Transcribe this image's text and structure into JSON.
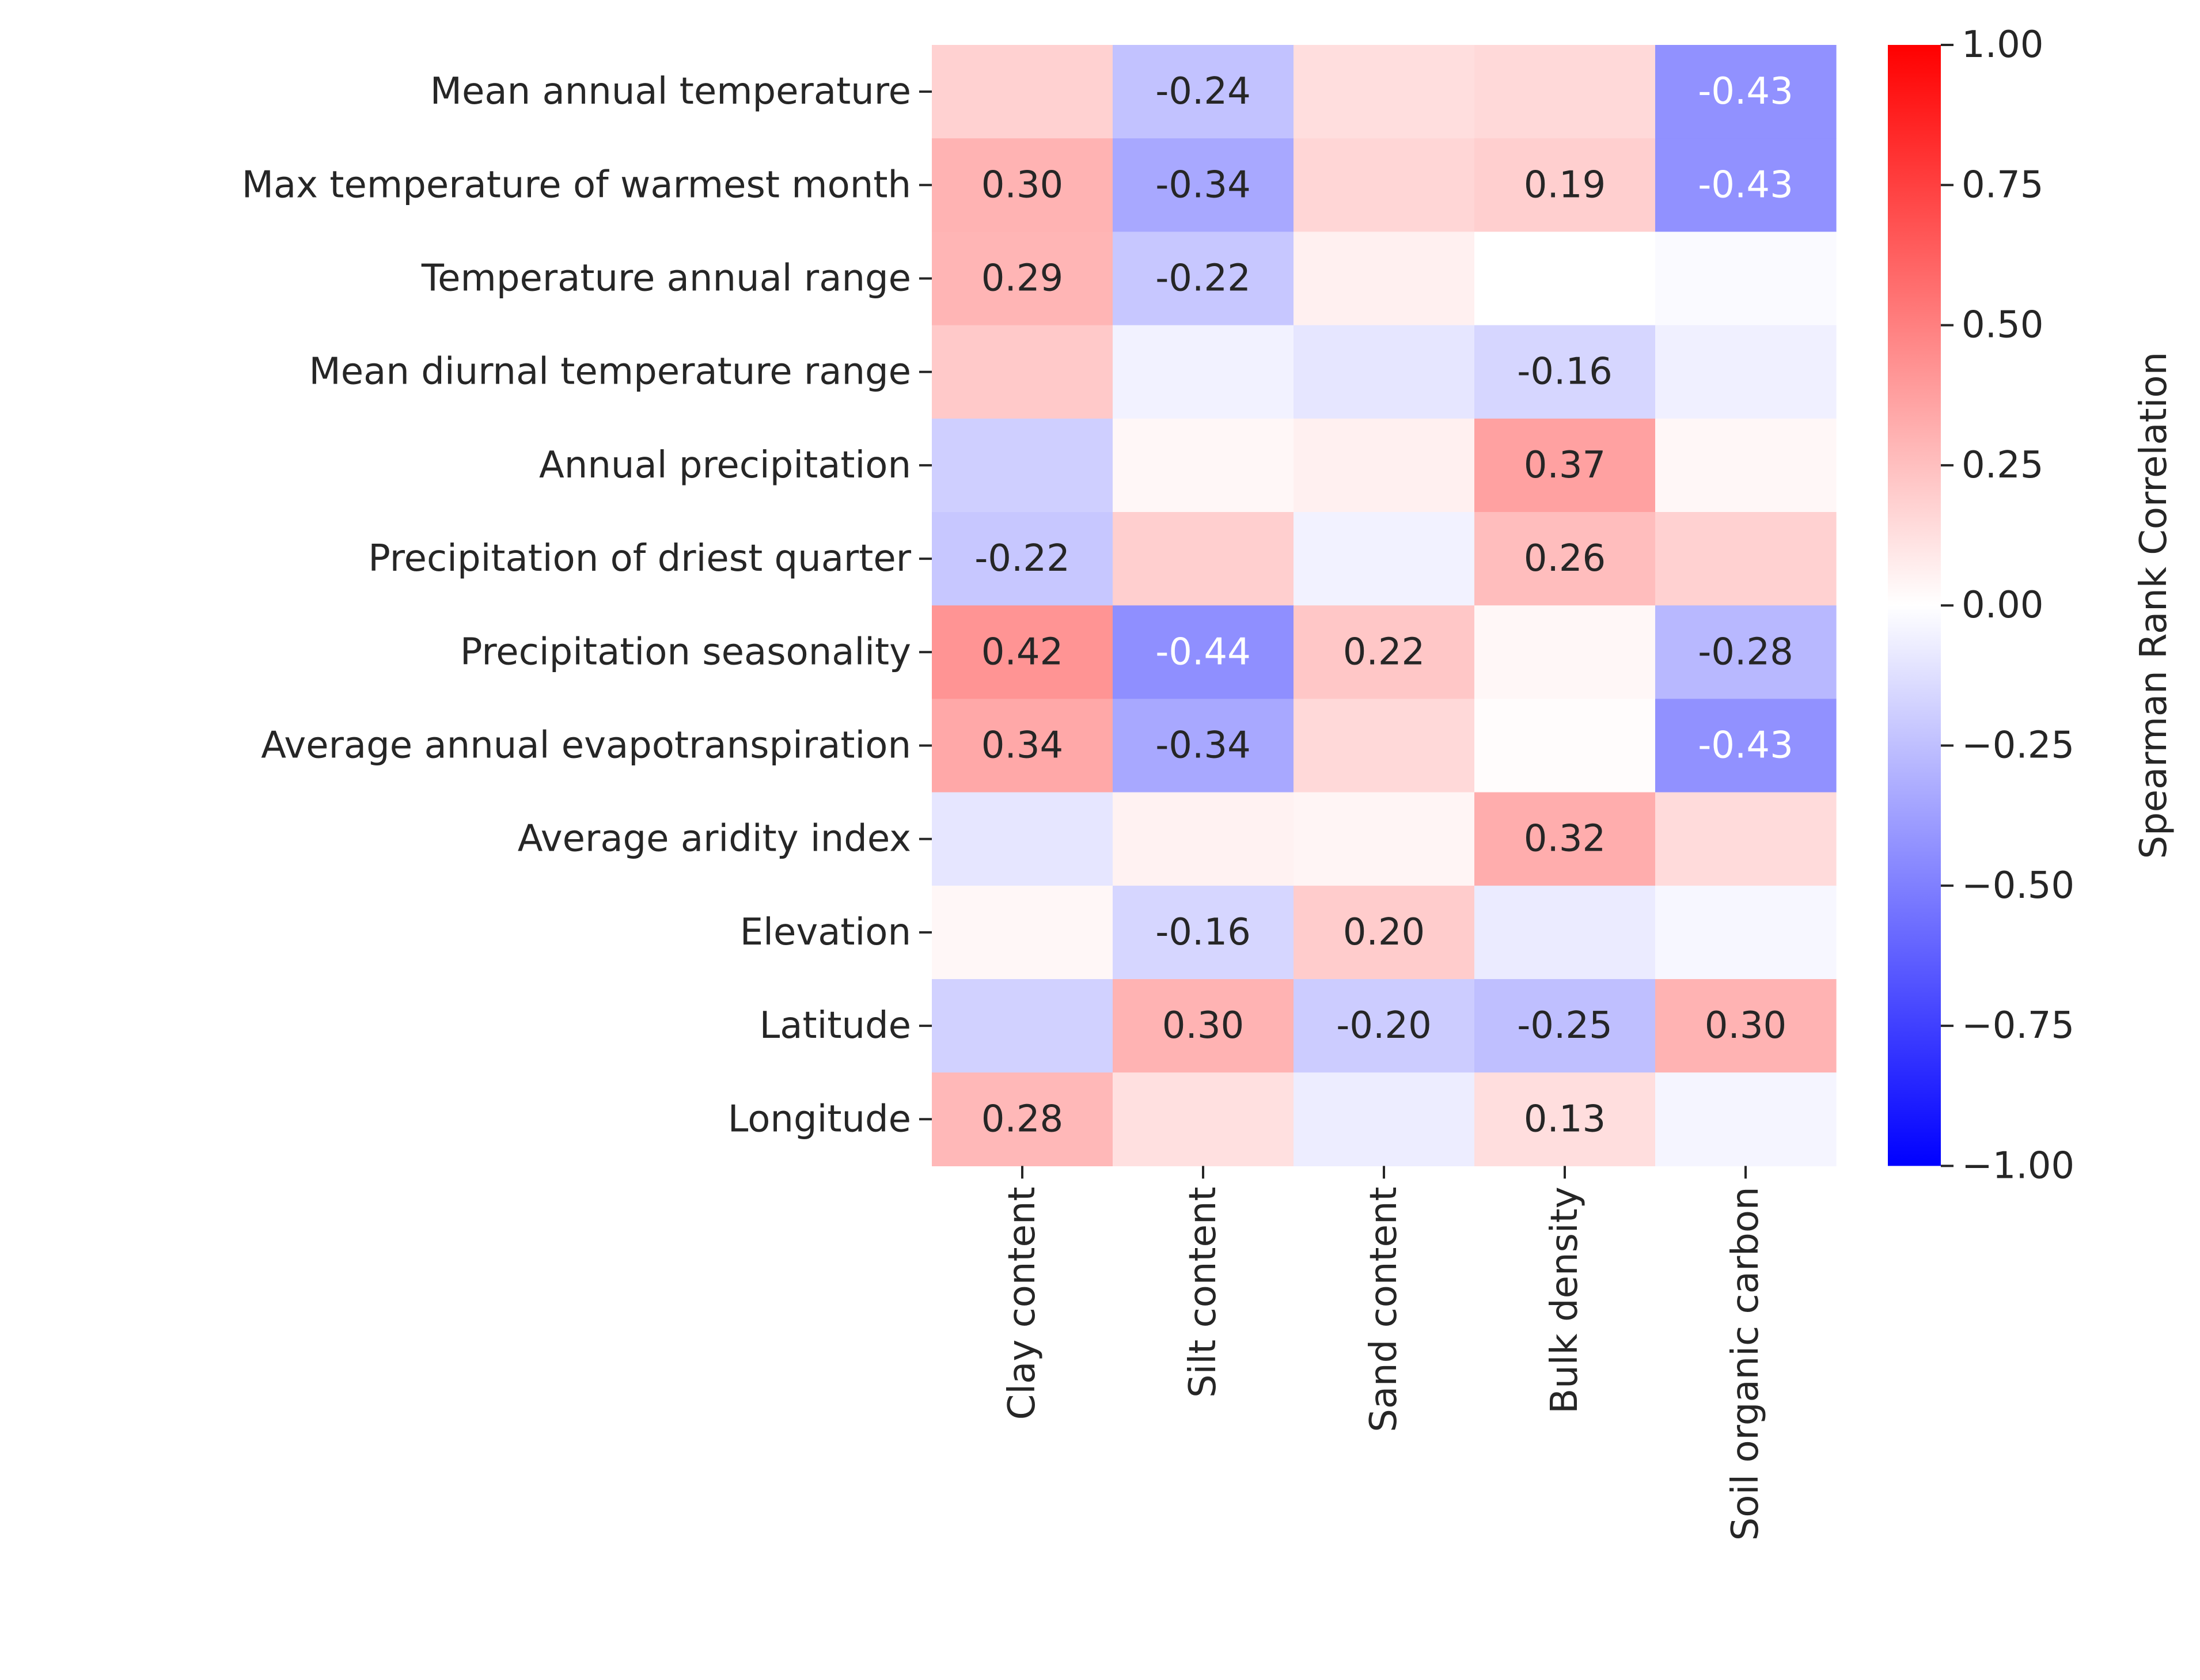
{
  "chart_data": {
    "type": "heatmap",
    "rows": [
      "Mean annual temperature",
      "Max temperature of warmest month",
      "Temperature annual range",
      "Mean diurnal temperature range",
      "Annual precipitation",
      "Precipitation of driest quarter",
      "Precipitation seasonality",
      "Average annual evapotranspiration",
      "Average aridity index",
      "Elevation",
      "Latitude",
      "Longitude"
    ],
    "columns": [
      "Clay content",
      "Silt content",
      "Sand content",
      "Bulk density",
      "Soil organic carbon"
    ],
    "values": [
      [
        0.18,
        -0.24,
        0.13,
        0.15,
        -0.43
      ],
      [
        0.3,
        -0.34,
        0.16,
        0.19,
        -0.43
      ],
      [
        0.29,
        -0.22,
        0.06,
        0.0,
        -0.02
      ],
      [
        0.21,
        -0.05,
        -0.1,
        -0.16,
        -0.06
      ],
      [
        -0.19,
        0.03,
        0.06,
        0.37,
        0.03
      ],
      [
        -0.22,
        0.19,
        -0.05,
        0.26,
        0.18
      ],
      [
        0.42,
        -0.44,
        0.22,
        0.03,
        -0.28
      ],
      [
        0.34,
        -0.34,
        0.15,
        0.01,
        -0.43
      ],
      [
        -0.1,
        0.05,
        0.04,
        0.32,
        0.14
      ],
      [
        0.03,
        -0.16,
        0.2,
        -0.08,
        -0.03
      ],
      [
        -0.18,
        0.3,
        -0.2,
        -0.25,
        0.3
      ],
      [
        0.28,
        0.12,
        -0.07,
        0.13,
        -0.04
      ]
    ],
    "annotations": [
      [
        "",
        "-0.24",
        "",
        "",
        "-0.43"
      ],
      [
        "0.30",
        "-0.34",
        "",
        "0.19",
        "-0.43"
      ],
      [
        "0.29",
        "-0.22",
        "",
        "",
        ""
      ],
      [
        "",
        "",
        "",
        "-0.16",
        ""
      ],
      [
        "",
        "",
        "",
        "0.37",
        ""
      ],
      [
        "-0.22",
        "",
        "",
        "0.26",
        ""
      ],
      [
        "0.42",
        "-0.44",
        "0.22",
        "",
        "-0.28"
      ],
      [
        "0.34",
        "-0.34",
        "",
        "",
        "-0.43"
      ],
      [
        "",
        "",
        "",
        "0.32",
        ""
      ],
      [
        "",
        "-0.16",
        "0.20",
        "",
        ""
      ],
      [
        "",
        "0.30",
        "-0.20",
        "-0.25",
        "0.30"
      ],
      [
        "0.28",
        "",
        "",
        "0.13",
        ""
      ]
    ],
    "colormap": "bwr",
    "vmin": -1.0,
    "vmax": 1.0,
    "colorbar": {
      "label": "Spearman Rank Correlation",
      "ticks": [
        1.0,
        0.75,
        0.5,
        0.25,
        0.0,
        -0.25,
        -0.5,
        -0.75,
        -1.0
      ],
      "tick_labels": [
        "1.00",
        "0.75",
        "0.50",
        "0.25",
        "0.00",
        "−0.25",
        "−0.50",
        "−0.75",
        "−1.00"
      ],
      "placement": "right"
    },
    "colors": {
      "min": "#0000ff",
      "mid": "#ffffff",
      "max": "#ff0000"
    }
  }
}
